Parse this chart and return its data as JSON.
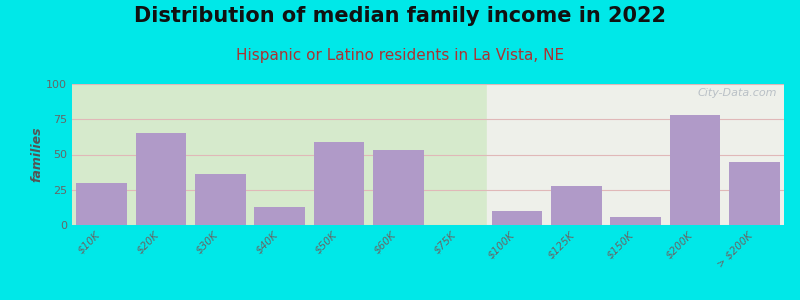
{
  "title": "Distribution of median family income in 2022",
  "subtitle": "Hispanic or Latino residents in La Vista, NE",
  "categories": [
    "$10K",
    "$20K",
    "$30K",
    "$40K",
    "$50K",
    "$60K",
    "$75K",
    "$100K",
    "$125K",
    "$150K",
    "$200K",
    "> $200K"
  ],
  "values": [
    30,
    65,
    36,
    13,
    59,
    53,
    0,
    10,
    28,
    6,
    78,
    45
  ],
  "bar_color": "#b09ac8",
  "background_outer": "#00e8e8",
  "plot_bg_left": "#d6eacc",
  "plot_bg_right": "#eef0ea",
  "ylabel": "families",
  "ylim": [
    0,
    100
  ],
  "yticks": [
    0,
    25,
    50,
    75,
    100
  ],
  "title_fontsize": 15,
  "subtitle_fontsize": 11,
  "subtitle_color": "#aa3333",
  "watermark": "City-Data.com",
  "grid_color": "#e0b8b8",
  "split_idx": 7
}
